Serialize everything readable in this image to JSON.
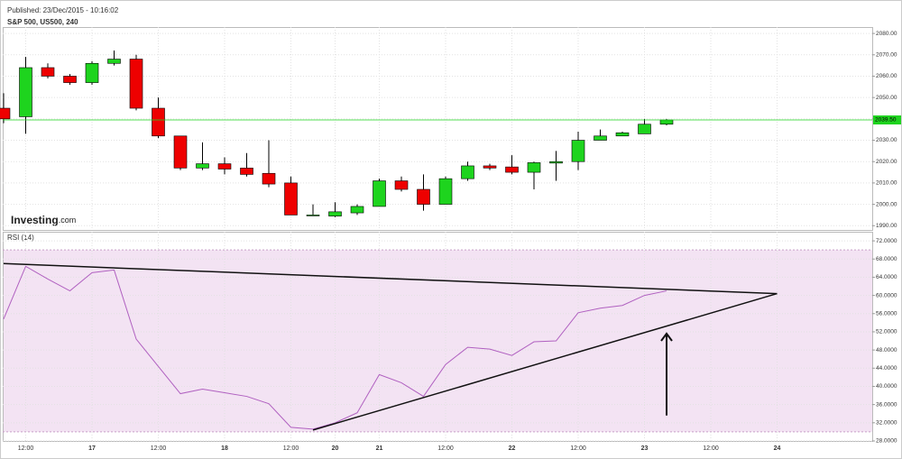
{
  "header": {
    "published": "Published: 23/Dec/2015 - 10:16:02",
    "symbol": "S&P 500, US500, 240",
    "brand": "Investing",
    "brand_suffix": ".com"
  },
  "chart_data": [
    {
      "type": "candlestick",
      "categories": [
        null,
        "12:00",
        null,
        null,
        "17",
        null,
        null,
        "12:00",
        null,
        null,
        "18",
        null,
        null,
        "12:00",
        null,
        "20",
        null,
        "21",
        null,
        null,
        "12:00",
        null,
        null,
        "22",
        null,
        null,
        "12:00",
        null,
        null,
        "23",
        null,
        null,
        "12:00",
        null,
        null,
        "24"
      ],
      "open": [
        2045,
        2041,
        2064,
        2060,
        2057,
        2066,
        2068,
        2045,
        2032,
        2017,
        2019,
        2017,
        2014.5,
        2010,
        1995,
        1994.5,
        1996,
        1999,
        2011,
        2007,
        2000,
        2012,
        2018,
        2017.5,
        2015,
        2019.3,
        2020,
        2030,
        2032,
        2033,
        2037.5,
        null,
        null,
        null,
        null,
        null
      ],
      "high": [
        2052,
        2069,
        2066,
        2061,
        2067,
        2072,
        2070,
        2050,
        2032,
        2029,
        2022,
        2024,
        2030,
        2013,
        2000,
        2001,
        2000,
        2012,
        2013,
        2014,
        2013,
        2020,
        2019,
        2023,
        2020,
        2025,
        2034,
        2035,
        2034,
        2040,
        2040,
        null,
        null,
        null,
        null,
        null
      ],
      "low": [
        2038,
        2033,
        2059,
        2056,
        2056,
        2065,
        2044,
        2031,
        2016,
        2016,
        2014,
        2013,
        2008,
        1995,
        1995,
        1994,
        1995,
        1999,
        2006,
        1997,
        2000,
        2011,
        2016,
        2014,
        2007,
        2011,
        2016,
        2030,
        2032,
        2033,
        2037,
        null,
        null,
        null,
        null,
        null
      ],
      "close": [
        2040,
        2064,
        2060,
        2057,
        2066,
        2068,
        2045,
        2032,
        2017,
        2019,
        2016.5,
        2014,
        2009.5,
        1995,
        1995,
        1996.5,
        1999,
        2011,
        2007,
        2000,
        2012,
        2018,
        2017,
        2015,
        2019.5,
        2020,
        2030,
        2032,
        2033.5,
        2037.5,
        2039.5,
        null,
        null,
        null,
        null,
        null
      ],
      "up_color": "#1ed41e",
      "down_color": "#ee0000",
      "current_price": {
        "value": 2039.5,
        "label": "2039.50"
      },
      "current_color": "#1ed41e",
      "ylim": [
        1988,
        2083
      ],
      "yticks": [
        {
          "value": 1990,
          "label": "1990.00"
        },
        {
          "value": 2000,
          "label": "2000.00"
        },
        {
          "value": 2010,
          "label": "2010.00"
        },
        {
          "value": 2020,
          "label": "2020.00"
        },
        {
          "value": 2030,
          "label": "2030.00"
        },
        {
          "value": 2040,
          "label": "2040.00"
        },
        {
          "value": 2050,
          "label": "2050.00"
        },
        {
          "value": 2060,
          "label": "2060.00"
        },
        {
          "value": 2070,
          "label": "2070.00"
        },
        {
          "value": 2080,
          "label": "2080.00"
        }
      ],
      "grid": true
    },
    {
      "type": "line",
      "title": "RSI (14)",
      "color": "#b060c0",
      "values": [
        54.8,
        66.4,
        63.6,
        61,
        65,
        65.6,
        50.4,
        44.4,
        38.4,
        39.4,
        38.6,
        37.8,
        36.2,
        31,
        30.6,
        32,
        34.2,
        42.6,
        40.8,
        37.8,
        44.8,
        48.6,
        48.2,
        46.8,
        49.8,
        50,
        56.2,
        57.2,
        57.8,
        60,
        61,
        null,
        null,
        null,
        null,
        null
      ],
      "band": [
        30,
        70
      ],
      "band_color": "#f3e3f3",
      "ylim": [
        27.8,
        74
      ],
      "yticks": [
        {
          "value": 28,
          "label": "28.0000"
        },
        {
          "value": 32,
          "label": "32.0000"
        },
        {
          "value": 36,
          "label": "36.0000"
        },
        {
          "value": 40,
          "label": "40.0000"
        },
        {
          "value": 44,
          "label": "44.0000"
        },
        {
          "value": 48,
          "label": "48.0000"
        },
        {
          "value": 52,
          "label": "52.0000"
        },
        {
          "value": 56,
          "label": "56.0000"
        },
        {
          "value": 60,
          "label": "60.0000"
        },
        {
          "value": 64,
          "label": "64.0000"
        },
        {
          "value": 68,
          "label": "68.0000"
        },
        {
          "value": 72,
          "label": "72.0000"
        }
      ],
      "trendlines": [
        {
          "start": [
            0,
            67
          ],
          "end": [
            35,
            60.4
          ]
        },
        {
          "start": [
            14,
            30.4
          ],
          "end": [
            35,
            60.4
          ]
        }
      ],
      "arrow": {
        "x": 30,
        "from": 33.6,
        "to": 51.6
      },
      "grid": true
    }
  ]
}
